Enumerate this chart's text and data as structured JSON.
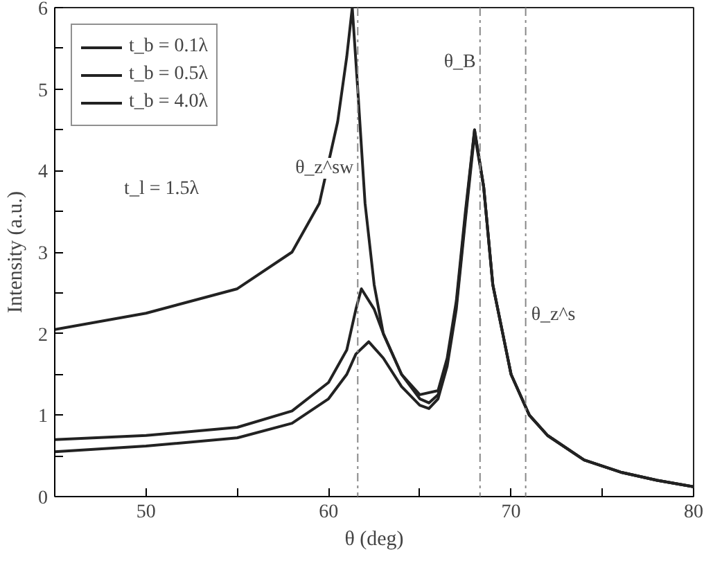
{
  "chart_data": {
    "type": "line",
    "xlabel": "θ (deg)",
    "ylabel": "Intensity (a.u.)",
    "xlim": [
      45,
      80
    ],
    "ylim": [
      0,
      6
    ],
    "xticks": [
      50,
      60,
      70,
      80,
      {
        "value": 55,
        "label": null
      },
      {
        "value": 65,
        "label": null
      },
      {
        "value": 75,
        "label": null
      }
    ],
    "yticks": [
      0,
      1,
      2,
      3,
      4,
      5,
      6,
      {
        "value": 0.5,
        "label": null
      },
      {
        "value": 1.5,
        "label": null
      },
      {
        "value": 2.5,
        "label": null
      },
      {
        "value": 3.5,
        "label": null
      },
      {
        "value": 4.5,
        "label": null
      },
      {
        "value": 5.5,
        "label": null
      }
    ],
    "series": [
      {
        "name": "t_b = 0.1λ",
        "color": "#222222",
        "x": [
          45,
          50,
          55,
          58,
          59.5,
          60.5,
          61,
          61.3,
          61.6,
          62,
          62.5,
          63,
          64,
          65,
          66,
          66.5,
          67,
          67.5,
          68,
          68.5,
          69,
          70,
          71,
          72,
          74,
          76,
          78,
          80
        ],
        "values": [
          2.05,
          2.25,
          2.55,
          3.0,
          3.6,
          4.6,
          5.4,
          6.0,
          5.0,
          3.6,
          2.6,
          2.0,
          1.5,
          1.25,
          1.3,
          1.7,
          2.4,
          3.5,
          4.5,
          3.8,
          2.6,
          1.5,
          1.0,
          0.75,
          0.45,
          0.3,
          0.2,
          0.12
        ]
      },
      {
        "name": "t_b = 0.5λ",
        "color": "#222222",
        "x": [
          45,
          50,
          55,
          58,
          60,
          61,
          61.5,
          61.8,
          62.5,
          63,
          64,
          65,
          65.5,
          66,
          66.5,
          67,
          67.5,
          68,
          68.5,
          69,
          70,
          71,
          72,
          74,
          76,
          78,
          80
        ],
        "values": [
          0.7,
          0.75,
          0.85,
          1.05,
          1.4,
          1.8,
          2.3,
          2.55,
          2.3,
          2.0,
          1.5,
          1.2,
          1.15,
          1.25,
          1.65,
          2.35,
          3.45,
          4.5,
          3.8,
          2.6,
          1.5,
          1.0,
          0.75,
          0.45,
          0.3,
          0.2,
          0.12
        ]
      },
      {
        "name": "t_b = 4.0λ",
        "color": "#222222",
        "x": [
          45,
          50,
          55,
          58,
          60,
          61,
          61.5,
          62.2,
          63,
          64,
          65,
          65.5,
          66,
          66.5,
          67,
          67.5,
          68,
          68.5,
          69,
          70,
          71,
          72,
          74,
          76,
          78,
          80
        ],
        "values": [
          0.55,
          0.62,
          0.72,
          0.9,
          1.2,
          1.5,
          1.75,
          1.9,
          1.7,
          1.35,
          1.12,
          1.08,
          1.2,
          1.6,
          2.3,
          3.4,
          4.45,
          3.8,
          2.6,
          1.5,
          1.0,
          0.75,
          0.45,
          0.3,
          0.2,
          0.12
        ]
      }
    ],
    "ref_lines": [
      {
        "axis": "x",
        "value": 61.6,
        "label": "θ_z^sw",
        "color": "#888888",
        "line_style": "dashed"
      },
      {
        "axis": "x",
        "value": 68.3,
        "label": "θ_B",
        "color": "#888888",
        "line_style": "dashed"
      },
      {
        "axis": "x",
        "value": 70.8,
        "label": "θ_z^s",
        "color": "#888888",
        "line_style": "dashed"
      }
    ],
    "annotations": [
      "t_l = 1.5λ"
    ],
    "legend": "top left",
    "grid": false,
    "marker": "none",
    "line_style": "solid"
  }
}
